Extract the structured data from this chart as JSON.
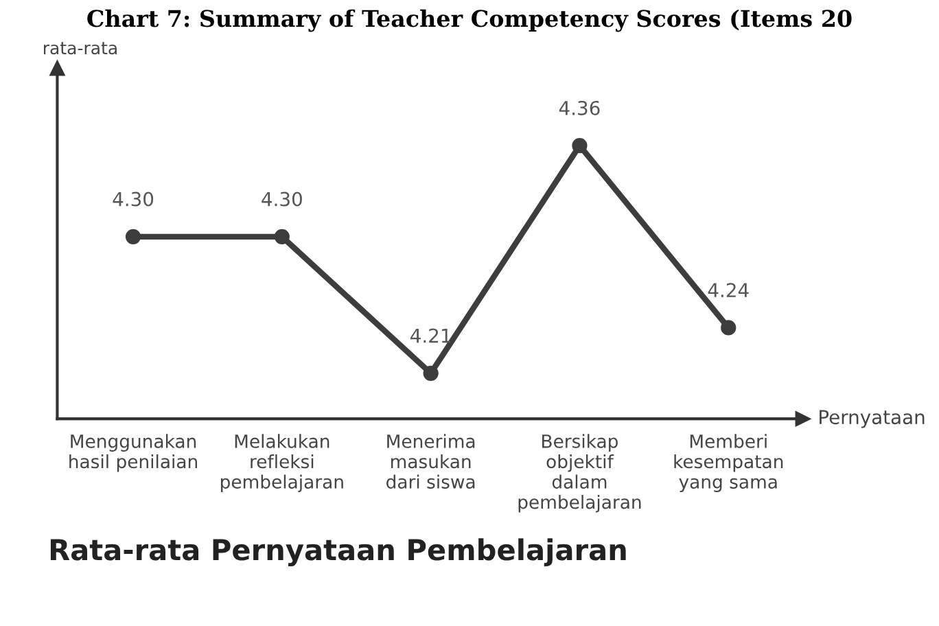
{
  "chart_data": {
    "type": "line",
    "title": "Rata-rata Pernyataan Pembelajaran",
    "subtitle": "Chart 7: Summary of Teacher Competency Scores (Items 20",
    "xlabel": "Pernyataan",
    "annotations": [
      "rata-rata"
    ],
    "categories": [
      "Menggunakan\nhasil penilaian",
      "Melakukan\nrefleksi\npembelajaran",
      "Menerima\nmasukan\ndari siswa",
      "Bersikap\nobjektif\ndalam\npembelajaran",
      "Memberi\nkesempatan\nyang sama"
    ],
    "series": [
      {
        "color": "#3d3d3d",
        "values": [
          4.3,
          4.3,
          4.21,
          4.36,
          4.24
        ],
        "value_labels": [
          "4.30",
          "4.30",
          "4.21",
          "4.36",
          "4.24"
        ]
      }
    ],
    "marker": "circle",
    "line_style": "solid",
    "grid": false,
    "legend": false
  }
}
